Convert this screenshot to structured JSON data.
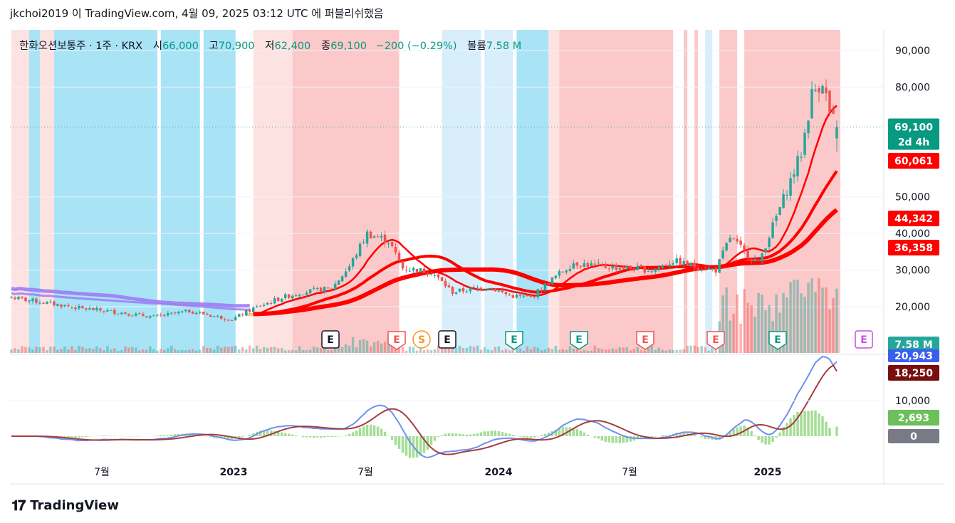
{
  "header": {
    "publish_line": "jkchoi2019 이 TradingView.com, 4월 09, 2025 03:12 UTC 에 퍼블리쉬했음"
  },
  "legend": {
    "symbol": "한화오션보통주 · 1주 · KRX",
    "open_label": "시",
    "open": "66,000",
    "high_label": "고",
    "high": "70,900",
    "low_label": "저",
    "low": "62,400",
    "close_label": "종",
    "close": "69,100",
    "change": "−200 (−0.29%)",
    "volume_label": "볼륨",
    "volume": "7.58 M"
  },
  "footer": {
    "brand": "TradingView"
  },
  "colors": {
    "up": "#26a69a",
    "down": "#ef5350",
    "ma_red": "#ff0000",
    "ma_purple": "#9c7cf4",
    "ma_orange": "#f5b971",
    "macd": "#6f8ff0",
    "signal": "#a33e3e",
    "shade_red": "#fbc9c9",
    "shade_pink": "#fde2e2",
    "shade_blue": "#a9e3f6",
    "shade_lightblue": "#d8eefb"
  },
  "chart_data": {
    "type": "candlestick",
    "symbol": "한화오션보통주",
    "interval": "1주",
    "exchange": "KRX",
    "price_axis": {
      "ticks": [
        "90,000",
        "80,000",
        "50,000",
        "40,000",
        "30,000",
        "20,000"
      ],
      "ylim": [
        12000,
        95000
      ]
    },
    "time_axis": {
      "ticks": [
        "7월",
        "2023",
        "7월",
        "2024",
        "7월",
        "2025"
      ]
    },
    "ohlc_key_points": [
      {
        "x": 0,
        "close": 22500
      },
      {
        "x": 10,
        "close": 21000
      },
      {
        "x": 20,
        "close": 19500
      },
      {
        "x": 30,
        "close": 18500
      },
      {
        "x": 40,
        "close": 17200
      },
      {
        "x": 50,
        "close": 18800
      },
      {
        "x": 62,
        "close": 16500
      },
      {
        "x": 68,
        "close": 19500
      },
      {
        "x": 76,
        "close": 22500
      },
      {
        "x": 82,
        "close": 24000
      },
      {
        "x": 90,
        "close": 25000
      },
      {
        "x": 95,
        "close": 31000
      },
      {
        "x": 100,
        "close": 40000
      },
      {
        "x": 106,
        "close": 38000
      },
      {
        "x": 110,
        "close": 30500
      },
      {
        "x": 118,
        "close": 29500
      },
      {
        "x": 124,
        "close": 24000
      },
      {
        "x": 134,
        "close": 25500
      },
      {
        "x": 140,
        "close": 23000
      },
      {
        "x": 146,
        "close": 22500
      },
      {
        "x": 152,
        "close": 27500
      },
      {
        "x": 158,
        "close": 32000
      },
      {
        "x": 166,
        "close": 31000
      },
      {
        "x": 174,
        "close": 30500
      },
      {
        "x": 180,
        "close": 30000
      },
      {
        "x": 186,
        "close": 32500
      },
      {
        "x": 192,
        "close": 31000
      },
      {
        "x": 198,
        "close": 30000
      },
      {
        "x": 202,
        "close": 39000
      },
      {
        "x": 206,
        "close": 35000
      },
      {
        "x": 210,
        "close": 32000
      },
      {
        "x": 214,
        "close": 42000
      },
      {
        "x": 218,
        "close": 52000
      },
      {
        "x": 222,
        "close": 62000
      },
      {
        "x": 225,
        "close": 78000
      },
      {
        "x": 228,
        "close": 82000
      },
      {
        "x": 230,
        "close": 73000
      },
      {
        "x": 232,
        "close": 69100
      }
    ],
    "last_price": "69,100",
    "countdown": "2d 4h",
    "ma_labels": [
      "60,061",
      "44,342",
      "36,358"
    ],
    "volume_label": "7.58 M",
    "macd_axis": {
      "ticks": [
        "10,000"
      ]
    },
    "macd_labels": {
      "macd": "20,943",
      "signal": "18,250",
      "histogram": "2,693",
      "zero": "0"
    },
    "event_markers": [
      "E",
      "E",
      "S",
      "E",
      "E",
      "E",
      "E",
      "E",
      "E",
      "E"
    ]
  }
}
